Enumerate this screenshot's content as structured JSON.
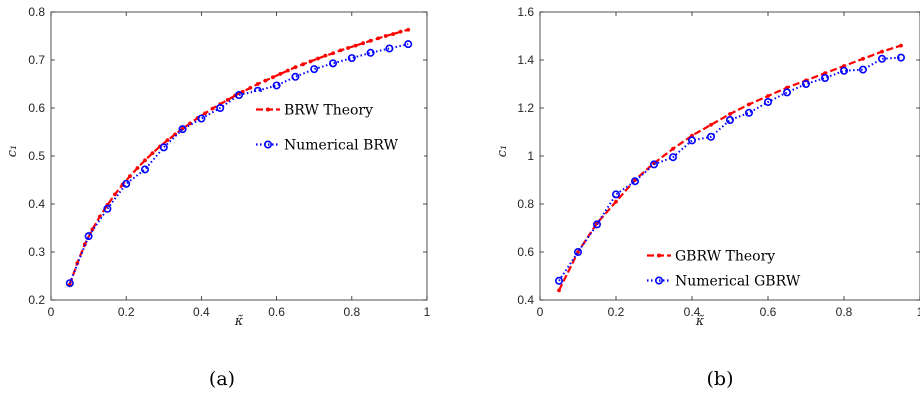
{
  "chart_data": [
    {
      "type": "line",
      "panel_label": "(a)",
      "xlabel": "κ̃",
      "ylabel": "c₁",
      "xlim": [
        0,
        1
      ],
      "ylim": [
        0.2,
        0.8
      ],
      "xticks": [
        "0",
        "0.2",
        "0.4",
        "0.6",
        "0.8",
        "1"
      ],
      "yticks": [
        "0.2",
        "0.3",
        "0.4",
        "0.5",
        "0.6",
        "0.7",
        "0.8"
      ],
      "grid": false,
      "legend": "center-right",
      "series": [
        {
          "name": "BRW Theory",
          "color": "#ff0000",
          "style": "dashed",
          "marker": "dot",
          "x": [
            0.05,
            0.07,
            0.09,
            0.11,
            0.13,
            0.15,
            0.17,
            0.19,
            0.21,
            0.23,
            0.25,
            0.27,
            0.29,
            0.31,
            0.33,
            0.35,
            0.37,
            0.39,
            0.41,
            0.43,
            0.45,
            0.47,
            0.49,
            0.51,
            0.53,
            0.55,
            0.57,
            0.59,
            0.61,
            0.63,
            0.65,
            0.67,
            0.69,
            0.71,
            0.73,
            0.75,
            0.77,
            0.79,
            0.81,
            0.83,
            0.85,
            0.87,
            0.89,
            0.91,
            0.93,
            0.95
          ],
          "y": [
            0.232,
            0.277,
            0.316,
            0.347,
            0.374,
            0.398,
            0.42,
            0.44,
            0.458,
            0.475,
            0.491,
            0.506,
            0.52,
            0.533,
            0.545,
            0.557,
            0.568,
            0.579,
            0.589,
            0.599,
            0.608,
            0.617,
            0.626,
            0.634,
            0.642,
            0.65,
            0.657,
            0.664,
            0.671,
            0.678,
            0.685,
            0.691,
            0.697,
            0.703,
            0.709,
            0.714,
            0.72,
            0.725,
            0.73,
            0.735,
            0.74,
            0.745,
            0.75,
            0.754,
            0.759,
            0.763
          ]
        },
        {
          "name": "Numerical BRW",
          "color": "#0000ff",
          "style": "dotted",
          "marker": "circle",
          "x": [
            0.05,
            0.1,
            0.15,
            0.2,
            0.25,
            0.3,
            0.35,
            0.4,
            0.45,
            0.5,
            0.55,
            0.6,
            0.65,
            0.7,
            0.75,
            0.8,
            0.85,
            0.9,
            0.95
          ],
          "y": [
            0.235,
            0.333,
            0.39,
            0.442,
            0.472,
            0.518,
            0.556,
            0.578,
            0.6,
            0.627,
            0.636,
            0.647,
            0.665,
            0.681,
            0.693,
            0.704,
            0.715,
            0.724,
            0.733
          ]
        }
      ]
    },
    {
      "type": "line",
      "panel_label": "(b)",
      "xlabel": "κ̃",
      "ylabel": "c₁",
      "xlim": [
        0,
        1
      ],
      "ylim": [
        0.4,
        1.6
      ],
      "xticks": [
        "0",
        "0.2",
        "0.4",
        "0.6",
        "0.8",
        "1"
      ],
      "yticks": [
        "0.4",
        "0.6",
        "0.8",
        "1",
        "1.2",
        "1.4",
        "1.6"
      ],
      "grid": false,
      "legend": "bottom-center",
      "series": [
        {
          "name": "GBRW Theory",
          "color": "#ff0000",
          "style": "dashed",
          "marker": "dot",
          "x": [
            0.05,
            0.1,
            0.15,
            0.2,
            0.25,
            0.3,
            0.35,
            0.4,
            0.45,
            0.5,
            0.55,
            0.6,
            0.65,
            0.7,
            0.75,
            0.8,
            0.85,
            0.9,
            0.95
          ],
          "y": [
            0.44,
            0.6,
            0.72,
            0.81,
            0.9,
            0.97,
            1.03,
            1.085,
            1.13,
            1.175,
            1.215,
            1.25,
            1.285,
            1.315,
            1.345,
            1.375,
            1.405,
            1.435,
            1.46
          ]
        },
        {
          "name": "Numerical GBRW",
          "color": "#0000ff",
          "style": "dotted",
          "marker": "circle",
          "x": [
            0.05,
            0.1,
            0.15,
            0.2,
            0.25,
            0.3,
            0.35,
            0.4,
            0.45,
            0.5,
            0.55,
            0.6,
            0.65,
            0.7,
            0.75,
            0.8,
            0.85,
            0.9,
            0.95
          ],
          "y": [
            0.48,
            0.6,
            0.715,
            0.84,
            0.895,
            0.965,
            0.995,
            1.065,
            1.08,
            1.15,
            1.18,
            1.225,
            1.265,
            1.3,
            1.325,
            1.355,
            1.36,
            1.405,
            1.41
          ]
        }
      ]
    }
  ]
}
